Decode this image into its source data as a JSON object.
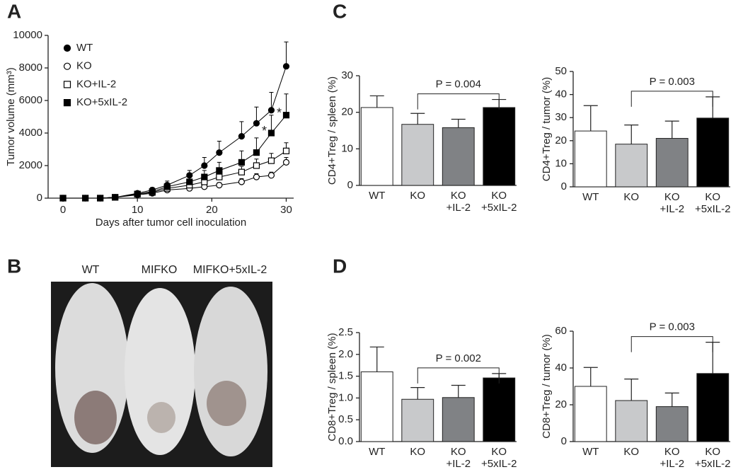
{
  "chart_data": [
    {
      "type": "line",
      "panel": "A",
      "xlabel": "Days after tumor cell inoculation",
      "ylabel": "Tumor volume (mm³)",
      "x": [
        0,
        3,
        5,
        7,
        10,
        12,
        14,
        17,
        19,
        21,
        24,
        26,
        28,
        30
      ],
      "xlim": [
        -2,
        31
      ],
      "xticks": [
        0,
        10,
        20,
        30
      ],
      "ylim": [
        0,
        10000
      ],
      "yticks": [
        0,
        2000,
        4000,
        6000,
        8000,
        10000
      ],
      "series": [
        {
          "name": "WT",
          "color": "#000000",
          "marker": "circle",
          "filled": true,
          "values": [
            0,
            0,
            0,
            50,
            300,
            500,
            800,
            1400,
            2000,
            2800,
            3800,
            4600,
            5400,
            8100
          ],
          "errors": [
            0,
            0,
            0,
            30,
            100,
            150,
            250,
            300,
            500,
            700,
            900,
            1000,
            1100,
            1500
          ]
        },
        {
          "name": "KO",
          "color": "#000000",
          "marker": "circle",
          "filled": false,
          "values": [
            0,
            0,
            0,
            50,
            200,
            300,
            500,
            600,
            700,
            800,
            1000,
            1300,
            1400,
            2200
          ],
          "errors": [
            0,
            0,
            0,
            20,
            50,
            80,
            100,
            100,
            150,
            150,
            200,
            200,
            200,
            300
          ]
        },
        {
          "name": "KO+IL-2",
          "color": "#000000",
          "marker": "square",
          "filled": false,
          "values": [
            0,
            0,
            0,
            50,
            250,
            350,
            600,
            800,
            1000,
            1300,
            1600,
            2000,
            2300,
            2900
          ],
          "errors": [
            0,
            0,
            0,
            20,
            60,
            100,
            150,
            200,
            250,
            300,
            350,
            400,
            450,
            500
          ]
        },
        {
          "name": "KO+5xIL-2",
          "color": "#000000",
          "marker": "square",
          "filled": true,
          "values": [
            0,
            0,
            0,
            50,
            250,
            400,
            700,
            1000,
            1300,
            1700,
            2200,
            2800,
            4000,
            5100
          ],
          "errors": [
            0,
            0,
            0,
            30,
            80,
            150,
            200,
            300,
            400,
            500,
            700,
            900,
            1100,
            1300
          ]
        }
      ],
      "annotations": [
        "*",
        "*"
      ]
    },
    {
      "type": "image",
      "panel": "B",
      "labels": [
        "WT",
        "MIFKO",
        "MIFKO+5xIL-2"
      ]
    },
    {
      "type": "bar",
      "panel": "C",
      "ylabel": "CD4+Treg / spleen (%)",
      "categories": [
        "WT",
        "KO",
        [
          "KO",
          "+IL-2"
        ],
        [
          "KO",
          "+5xIL-2"
        ]
      ],
      "colors": [
        "#ffffff",
        "#c8c9cb",
        "#808285",
        "#000000"
      ],
      "values": [
        21.3,
        16.7,
        15.8,
        21.3
      ],
      "errors": [
        3.2,
        3.0,
        2.3,
        2.2
      ],
      "ylim": [
        0,
        30
      ],
      "yticks": [
        0,
        10,
        20,
        30
      ],
      "pvalue": "P = 0.004"
    },
    {
      "type": "bar",
      "ylabel": "CD4+Treg / tumor (%)",
      "categories": [
        "WT",
        "KO",
        [
          "KO",
          "+IL-2"
        ],
        [
          "KO",
          "+5xIL-2"
        ]
      ],
      "colors": [
        "#ffffff",
        "#c8c9cb",
        "#808285",
        "#000000"
      ],
      "values": [
        24.2,
        18.5,
        21.0,
        29.8
      ],
      "errors": [
        11.0,
        8.3,
        7.5,
        9.2
      ],
      "ylim": [
        0,
        50
      ],
      "yticks": [
        0,
        10,
        20,
        30,
        40,
        50
      ],
      "pvalue": "P = 0.003"
    },
    {
      "type": "bar",
      "panel": "D",
      "ylabel": "CD8+Treg / spleen (%)",
      "categories": [
        "WT",
        "KO",
        [
          "KO",
          "+IL-2"
        ],
        [
          "KO",
          "+5xIL-2"
        ]
      ],
      "colors": [
        "#ffffff",
        "#c8c9cb",
        "#808285",
        "#000000"
      ],
      "values": [
        1.6,
        0.97,
        1.01,
        1.46
      ],
      "errors": [
        0.57,
        0.27,
        0.28,
        0.1
      ],
      "ylim": [
        0,
        2.5
      ],
      "yticks": [
        {
          "value": 0,
          "label": "0.0"
        },
        0.5,
        {
          "value": 1,
          "label": "1.0"
        },
        1.5,
        {
          "value": 2,
          "label": "2.0"
        },
        2.5
      ],
      "pvalue": "P = 0.002"
    },
    {
      "type": "bar",
      "ylabel": "CD8+Treg / tumor (%)",
      "categories": [
        "WT",
        "KO",
        [
          "KO",
          "+IL-2"
        ],
        [
          "KO",
          "+5xIL-2"
        ]
      ],
      "colors": [
        "#ffffff",
        "#c8c9cb",
        "#808285",
        "#000000"
      ],
      "values": [
        30.0,
        22.3,
        19.0,
        37.0
      ],
      "errors": [
        10.3,
        11.7,
        7.4,
        17.0
      ],
      "ylim": [
        0,
        60
      ],
      "yticks": [
        0,
        20,
        40,
        60
      ],
      "pvalue": "P = 0.003"
    }
  ]
}
